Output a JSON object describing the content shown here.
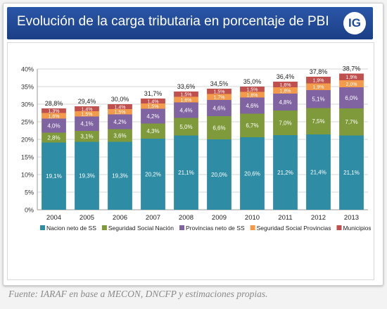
{
  "header": {
    "title": "Evolución de la carga tributaria en porcentaje de PBI",
    "logo_text": "IG"
  },
  "footer": {
    "source": "Fuente: IARAF en base a MECON, DNCFP y estimaciones propias."
  },
  "colors": {
    "header_bg": "#1f4c98",
    "series": [
      "#2e8ca4",
      "#7f9a3a",
      "#8064a2",
      "#f39b4a",
      "#c0504d"
    ]
  },
  "chart_data": {
    "type": "bar",
    "stacked": true,
    "categories": [
      "2004",
      "2005",
      "2006",
      "2007",
      "2008",
      "2009",
      "2010",
      "2011",
      "2012",
      "2013"
    ],
    "series": [
      {
        "name": "Nacion neto de SS",
        "values": [
          19.1,
          19.3,
          19.3,
          20.2,
          21.1,
          20.0,
          20.6,
          21.2,
          21.4,
          21.1
        ],
        "labels": [
          "19,1%",
          "19,3%",
          "19,3%",
          "20,2%",
          "21,1%",
          "20,0%",
          "20,6%",
          "21,2%",
          "21,4%",
          "21,1%"
        ]
      },
      {
        "name": "Seguridad Social Nación",
        "values": [
          2.8,
          3.1,
          3.6,
          4.3,
          5.0,
          6.6,
          6.7,
          7.0,
          7.5,
          7.7
        ],
        "labels": [
          "2,8%",
          "3,1%",
          "3,6%",
          "4,3%",
          "5,0%",
          "6,6%",
          "6,7%",
          "7,0%",
          "7,5%",
          "7,7%"
        ]
      },
      {
        "name": "Provincias neto de SS",
        "values": [
          4.0,
          4.1,
          4.2,
          4.2,
          4.4,
          4.6,
          4.6,
          4.8,
          5.1,
          6.0
        ],
        "labels": [
          "4,0%",
          "4,1%",
          "4,2%",
          "4,2%",
          "4,4%",
          "4,6%",
          "4,6%",
          "4,8%",
          "5,1%",
          "6,0%"
        ]
      },
      {
        "name": "Seguridad Social Provincias",
        "values": [
          1.6,
          1.5,
          1.5,
          1.5,
          1.6,
          1.7,
          1.6,
          1.8,
          1.9,
          2.0
        ],
        "labels": [
          "1,6%",
          "1,5%",
          "1,5%",
          "1,5%",
          "1,6%",
          "1,7%",
          "1,6%",
          "1,8%",
          "1,9%",
          "2,0%"
        ]
      },
      {
        "name": "Municipios",
        "values": [
          1.3,
          1.4,
          1.4,
          1.4,
          1.5,
          1.5,
          1.5,
          1.6,
          1.9,
          1.9
        ],
        "labels": [
          "1,3%",
          "1,4%",
          "1,4%",
          "1,4%",
          "1,5%",
          "1,5%",
          "1,5%",
          "1,6%",
          "1,9%",
          "1,9%"
        ]
      }
    ],
    "totals": [
      28.8,
      29.4,
      30.0,
      31.7,
      33.6,
      34.5,
      35.0,
      36.4,
      37.8,
      38.7
    ],
    "total_labels": [
      "28,8%",
      "29,4%",
      "30,0%",
      "31,7%",
      "33,6%",
      "34,5%",
      "35,0%",
      "36,4%",
      "37,8%",
      "38,7%"
    ],
    "yticks": [
      "0%",
      "5%",
      "10%",
      "15%",
      "20%",
      "25%",
      "30%",
      "35%",
      "40%"
    ],
    "ylim": [
      0,
      40
    ],
    "grid": true,
    "legend": "bottom"
  }
}
